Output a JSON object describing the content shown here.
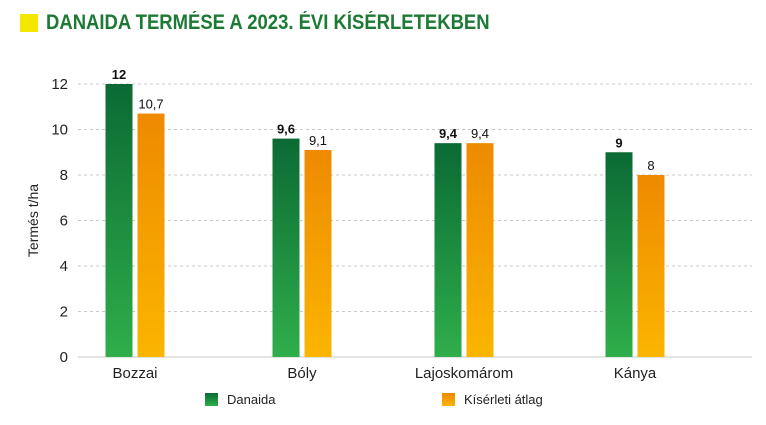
{
  "header": {
    "title": "DANAIDA TERMÉSE A 2023. ÉVI KÍSÉRLETEKBEN",
    "accent_color": "#f5e600",
    "title_color": "#1c7a35"
  },
  "chart_data": {
    "type": "bar",
    "title": "DANAIDA TERMÉSE A 2023. ÉVI KÍSÉRLETEKBEN",
    "xlabel": "",
    "ylabel": "Termés t/ha",
    "ylim": [
      0,
      12
    ],
    "yticks": [
      0,
      2,
      4,
      6,
      8,
      10,
      12
    ],
    "grid": "horizontal dashed",
    "legend_position": "bottom",
    "categories": [
      "Bozzai",
      "Bóly",
      "Lajoskomárom",
      "Kánya"
    ],
    "series": [
      {
        "name": "Danaida",
        "values": [
          12,
          9.6,
          9.4,
          9
        ],
        "labels": [
          "12",
          "9,6",
          "9,4",
          "9"
        ],
        "color_top": "#0b6a34",
        "color_bottom": "#2fae4a"
      },
      {
        "name": "Kísérleti átlag",
        "values": [
          10.7,
          9.1,
          9.4,
          8
        ],
        "labels": [
          "10,7",
          "9,1",
          "9,4",
          "8"
        ],
        "color_top": "#ee8a00",
        "color_bottom": "#fbb500"
      }
    ]
  }
}
